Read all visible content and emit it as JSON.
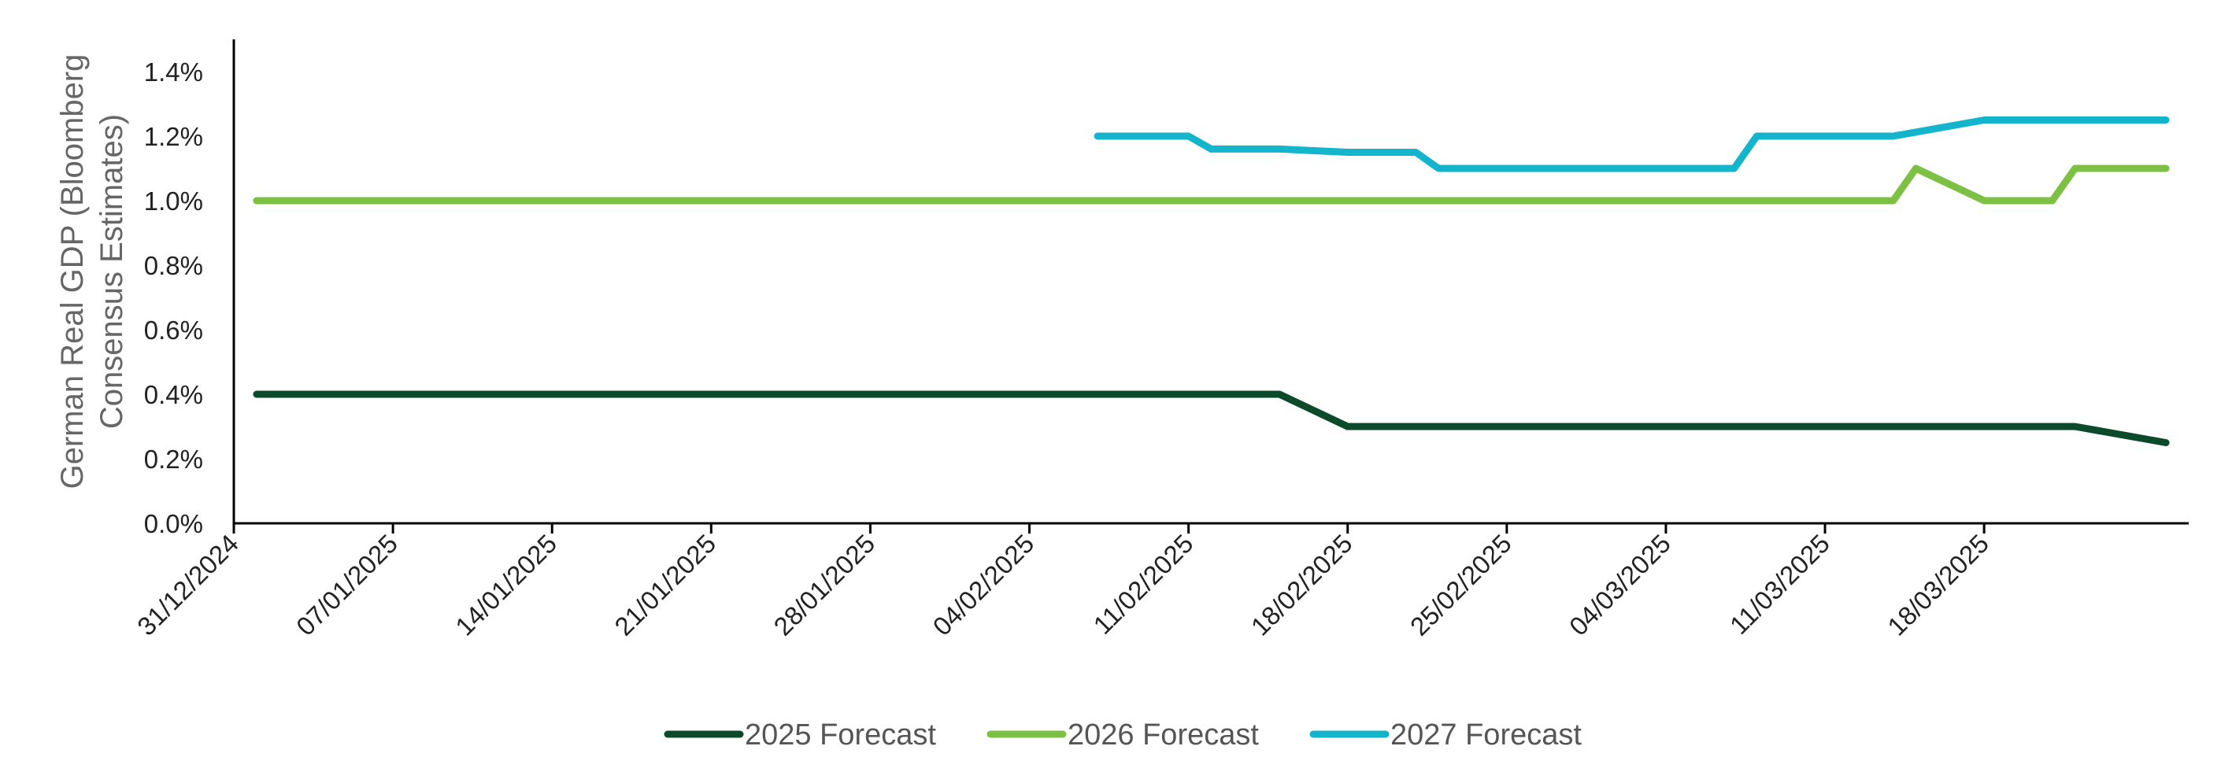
{
  "chart_data": {
    "type": "line",
    "ylabel_lines": [
      "German Real GDP (Bloomberg",
      "Consensus Estimates)"
    ],
    "xlabel": "",
    "ylim": [
      0,
      1.5
    ],
    "y_ticks": [
      "0.0%",
      "0.2%",
      "0.4%",
      "0.6%",
      "0.8%",
      "1.0%",
      "1.2%",
      "1.4%"
    ],
    "y_tick_values": [
      0,
      0.2,
      0.4,
      0.6,
      0.8,
      1.0,
      1.2,
      1.4
    ],
    "x_range": [
      "2024-12-31",
      "2025-03-27"
    ],
    "x_ticks": [
      "31/12/2024",
      "07/01/2025",
      "14/01/2025",
      "21/01/2025",
      "28/01/2025",
      "04/02/2025",
      "11/02/2025",
      "18/02/2025",
      "25/02/2025",
      "04/03/2025",
      "11/03/2025",
      "18/03/2025"
    ],
    "x_tick_dates": [
      "2024-12-31",
      "2025-01-07",
      "2025-01-14",
      "2025-01-21",
      "2025-01-28",
      "2025-02-04",
      "2025-02-11",
      "2025-02-18",
      "2025-02-25",
      "2025-03-04",
      "2025-03-11",
      "2025-03-18"
    ],
    "grid": false,
    "legend_position": "bottom",
    "series": [
      {
        "name": "2025 Forecast",
        "color": "#0b4a2b",
        "points": [
          [
            "2025-01-01",
            0.4
          ],
          [
            "2025-02-15",
            0.4
          ],
          [
            "2025-02-18",
            0.3
          ],
          [
            "2025-03-22",
            0.3
          ],
          [
            "2025-03-26",
            0.25
          ]
        ]
      },
      {
        "name": "2026 Forecast",
        "color": "#7cc143",
        "points": [
          [
            "2025-01-01",
            1.0
          ],
          [
            "2025-03-14",
            1.0
          ],
          [
            "2025-03-15",
            1.1
          ],
          [
            "2025-03-18",
            1.0
          ],
          [
            "2025-03-21",
            1.0
          ],
          [
            "2025-03-22",
            1.1
          ],
          [
            "2025-03-26",
            1.1
          ]
        ]
      },
      {
        "name": "2027 Forecast",
        "color": "#13b5cc",
        "points": [
          [
            "2025-02-07",
            1.2
          ],
          [
            "2025-02-11",
            1.2
          ],
          [
            "2025-02-12",
            1.16
          ],
          [
            "2025-02-15",
            1.16
          ],
          [
            "2025-02-18",
            1.15
          ],
          [
            "2025-02-21",
            1.15
          ],
          [
            "2025-02-22",
            1.1
          ],
          [
            "2025-03-07",
            1.1
          ],
          [
            "2025-03-08",
            1.2
          ],
          [
            "2025-03-14",
            1.2
          ],
          [
            "2025-03-18",
            1.25
          ],
          [
            "2025-03-26",
            1.25
          ]
        ]
      }
    ]
  }
}
